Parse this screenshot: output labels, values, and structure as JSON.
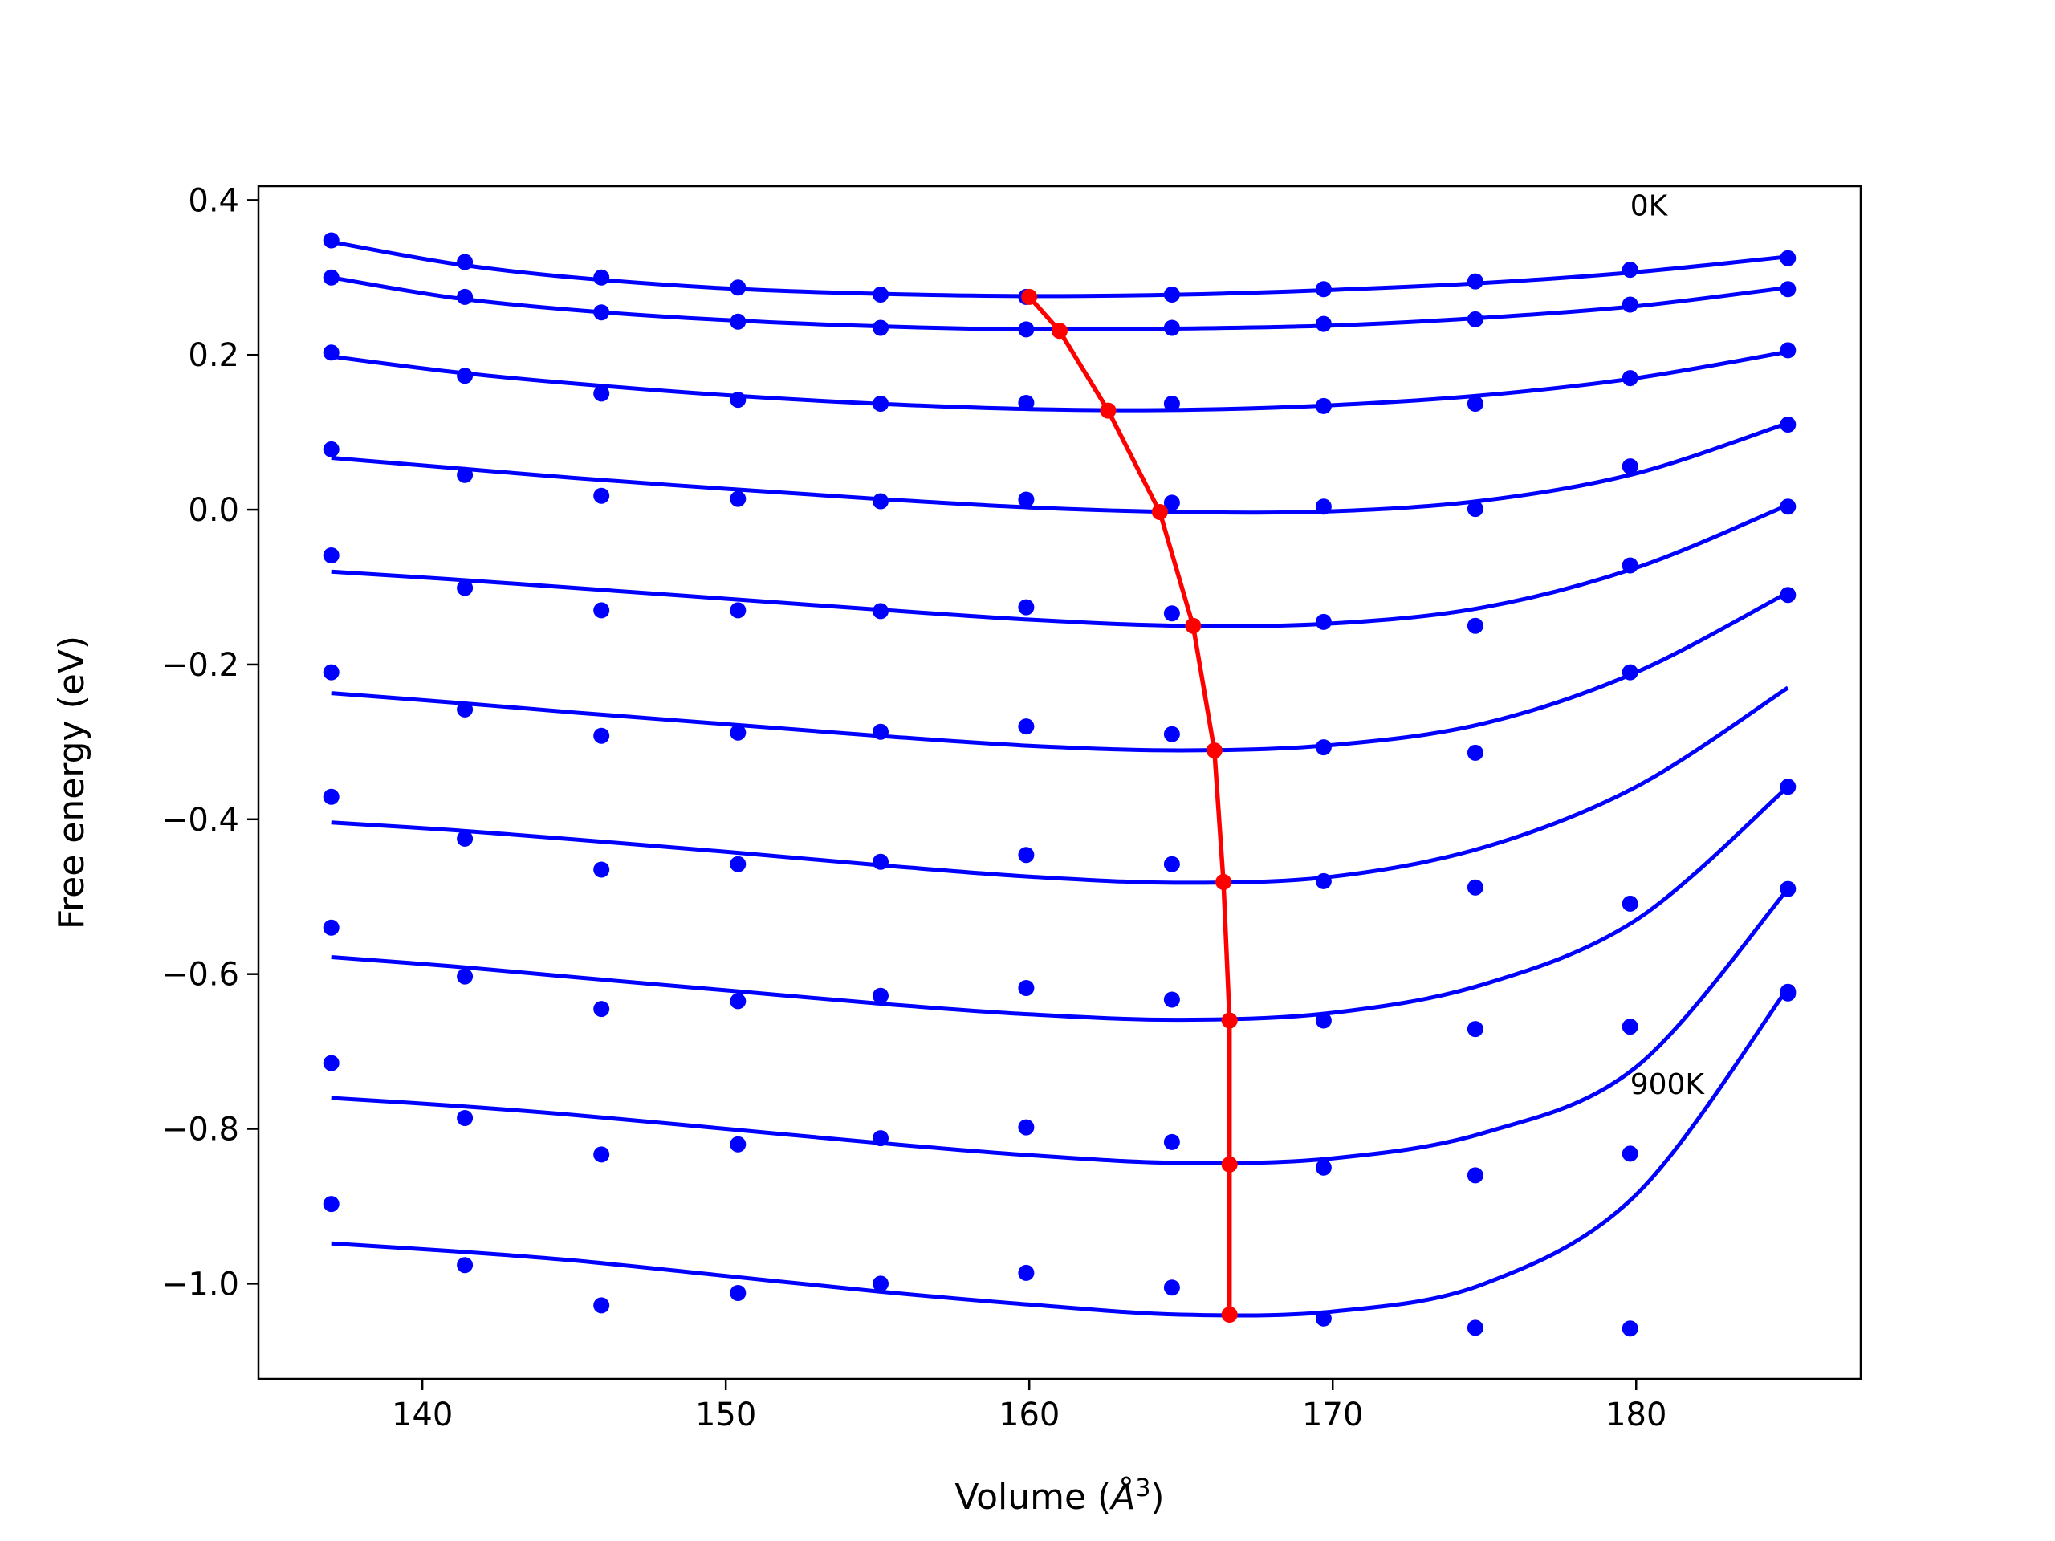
{
  "chart_data": {
    "type": "scatter",
    "title": "",
    "xlabel": "Volume (",
    "xlabel_unit": "Å",
    "xlabel_exponent": "3",
    "xlabel_close": ")",
    "ylabel": "Free energy (eV)",
    "xlim": [
      134.6,
      187.4
    ],
    "ylim": [
      -1.123,
      0.418
    ],
    "x_ticks": [
      140,
      150,
      160,
      170,
      180
    ],
    "x_tick_labels": [
      "140",
      "150",
      "160",
      "170",
      "180"
    ],
    "y_ticks": [
      0.4,
      0.2,
      0.0,
      -0.2,
      -0.4,
      -0.6,
      -0.8,
      -1.0
    ],
    "y_tick_labels": [
      "0.4",
      "0.2",
      "0.0",
      "−0.2",
      "−0.4",
      "−0.6",
      "−0.8",
      "−1.0"
    ],
    "grid": false,
    "colors": {
      "points": "#0000ff",
      "fits": "#0000ff",
      "minimum_path": "#ff0000"
    },
    "annotations": [
      {
        "text": "0K",
        "x": 179.8,
        "y": 0.38
      },
      {
        "text": "900K",
        "x": 179.8,
        "y": -0.755
      }
    ],
    "x": [
      137.0,
      141.4,
      145.9,
      150.4,
      155.1,
      159.9,
      164.7,
      169.7,
      174.7,
      179.8,
      185.0
    ],
    "series": [
      {
        "points": [
          0.348,
          0.32,
          0.3,
          0.287,
          0.278,
          0.275,
          0.278,
          0.285,
          0.295,
          0.31,
          0.325
        ],
        "fit": [
          [
            137.0,
            0.346
          ],
          [
            141.0,
            0.318
          ],
          [
            145.0,
            0.3
          ],
          [
            150.0,
            0.286
          ],
          [
            155.0,
            0.279
          ],
          [
            160.0,
            0.276
          ],
          [
            165.0,
            0.278
          ],
          [
            170.0,
            0.284
          ],
          [
            175.0,
            0.293
          ],
          [
            180.0,
            0.307
          ],
          [
            185.0,
            0.327
          ]
        ]
      },
      {
        "points": [
          0.3,
          0.275,
          0.255,
          0.243,
          0.235,
          0.233,
          0.235,
          0.24,
          0.246,
          0.265,
          0.285
        ],
        "fit": [
          [
            137.0,
            0.3
          ],
          [
            141.0,
            0.274
          ],
          [
            145.0,
            0.258
          ],
          [
            150.0,
            0.245
          ],
          [
            155.0,
            0.237
          ],
          [
            160.0,
            0.233
          ],
          [
            165.0,
            0.234
          ],
          [
            170.0,
            0.238
          ],
          [
            175.0,
            0.248
          ],
          [
            180.0,
            0.263
          ],
          [
            185.0,
            0.287
          ]
        ]
      },
      {
        "points": [
          0.203,
          0.173,
          0.15,
          0.142,
          0.137,
          0.138,
          0.137,
          0.134,
          0.137,
          0.17,
          0.206
        ],
        "fit": [
          [
            137.0,
            0.198
          ],
          [
            141.0,
            0.178
          ],
          [
            145.0,
            0.163
          ],
          [
            150.0,
            0.148
          ],
          [
            155.0,
            0.137
          ],
          [
            160.0,
            0.13
          ],
          [
            165.0,
            0.129
          ],
          [
            170.0,
            0.135
          ],
          [
            175.0,
            0.148
          ],
          [
            180.0,
            0.17
          ],
          [
            185.0,
            0.204
          ]
        ]
      },
      {
        "points": [
          0.078,
          0.045,
          0.018,
          0.014,
          0.011,
          0.013,
          0.009,
          0.004,
          0.001,
          0.056,
          0.11
        ],
        "fit": [
          [
            137.0,
            0.067
          ],
          [
            141.0,
            0.054
          ],
          [
            145.0,
            0.041
          ],
          [
            150.0,
            0.027
          ],
          [
            155.0,
            0.014
          ],
          [
            160.0,
            0.003
          ],
          [
            165.0,
            -0.003
          ],
          [
            170.0,
            -0.002
          ],
          [
            175.0,
            0.012
          ],
          [
            180.0,
            0.047
          ],
          [
            185.0,
            0.112
          ]
        ]
      },
      {
        "points": [
          -0.059,
          -0.101,
          -0.13,
          -0.13,
          -0.131,
          -0.126,
          -0.134,
          -0.145,
          -0.15,
          -0.072,
          0.004
        ],
        "fit": [
          [
            137.0,
            -0.08
          ],
          [
            141.0,
            -0.09
          ],
          [
            145.0,
            -0.101
          ],
          [
            150.0,
            -0.115
          ],
          [
            155.0,
            -0.129
          ],
          [
            160.0,
            -0.142
          ],
          [
            165.0,
            -0.15
          ],
          [
            170.0,
            -0.147
          ],
          [
            175.0,
            -0.126
          ],
          [
            180.0,
            -0.075
          ],
          [
            185.0,
            0.006
          ]
        ]
      },
      {
        "points": [
          -0.21,
          -0.258,
          -0.292,
          -0.288,
          -0.287,
          -0.28,
          -0.29,
          -0.307,
          -0.314,
          -0.21,
          -0.11
        ],
        "fit": [
          [
            137.0,
            -0.237
          ],
          [
            141.0,
            -0.249
          ],
          [
            145.0,
            -0.262
          ],
          [
            150.0,
            -0.277
          ],
          [
            155.0,
            -0.292
          ],
          [
            160.0,
            -0.305
          ],
          [
            165.0,
            -0.311
          ],
          [
            170.0,
            -0.304
          ],
          [
            175.0,
            -0.276
          ],
          [
            180.0,
            -0.21
          ],
          [
            185.0,
            -0.107
          ]
        ]
      },
      {
        "points": [
          -0.371,
          -0.425,
          -0.465,
          -0.458,
          -0.455,
          -0.446,
          -0.458,
          -0.48,
          -0.488,
          -0.509,
          -0.358
        ],
        "fit": [
          [
            137.0,
            -0.404
          ],
          [
            141.0,
            -0.414
          ],
          [
            145.0,
            -0.426
          ],
          [
            150.0,
            -0.442
          ],
          [
            155.0,
            -0.459
          ],
          [
            160.0,
            -0.474
          ],
          [
            165.0,
            -0.482
          ],
          [
            170.0,
            -0.474
          ],
          [
            175.0,
            -0.436
          ],
          [
            180.0,
            -0.358
          ],
          [
            185.0,
            -0.23
          ]
        ]
      },
      {
        "points": [
          -0.54,
          -0.603,
          -0.645,
          -0.635,
          -0.628,
          -0.618,
          -0.633,
          -0.66,
          -0.671,
          -0.668,
          -0.49
        ],
        "fit": [
          [
            137.0,
            -0.578
          ],
          [
            141.0,
            -0.59
          ],
          [
            145.0,
            -0.604
          ],
          [
            150.0,
            -0.621
          ],
          [
            155.0,
            -0.638
          ],
          [
            160.0,
            -0.652
          ],
          [
            165.0,
            -0.659
          ],
          [
            170.0,
            -0.65
          ],
          [
            175.0,
            -0.613
          ],
          [
            180.0,
            -0.53
          ],
          [
            185.0,
            -0.358
          ]
        ]
      },
      {
        "points": [
          -0.715,
          -0.786,
          -0.833,
          -0.82,
          -0.812,
          -0.798,
          -0.817,
          -0.85,
          -0.86,
          -0.832,
          -0.625
        ],
        "fit": [
          [
            137.0,
            -0.76
          ],
          [
            141.0,
            -0.77
          ],
          [
            145.0,
            -0.782
          ],
          [
            150.0,
            -0.8
          ],
          [
            155.0,
            -0.818
          ],
          [
            160.0,
            -0.834
          ],
          [
            165.0,
            -0.844
          ],
          [
            170.0,
            -0.838
          ],
          [
            175.0,
            -0.805
          ],
          [
            180.0,
            -0.72
          ],
          [
            185.0,
            -0.49
          ]
        ]
      },
      {
        "points": [
          -0.897,
          -0.976,
          -1.028,
          -1.012,
          -1.0,
          -0.986,
          -1.005,
          -1.045,
          -1.057,
          -1.058,
          -0.623
        ],
        "fit": [
          [
            137.0,
            -0.948
          ],
          [
            141.0,
            -0.958
          ],
          [
            145.0,
            -0.97
          ],
          [
            150.0,
            -0.99
          ],
          [
            155.0,
            -1.01
          ],
          [
            160.0,
            -1.027
          ],
          [
            165.0,
            -1.04
          ],
          [
            170.0,
            -1.036
          ],
          [
            175.0,
            -1.0
          ],
          [
            180.0,
            -0.885
          ],
          [
            185.0,
            -0.618
          ]
        ]
      }
    ],
    "minimum_path": {
      "x": [
        160.0,
        161.0,
        162.6,
        164.3,
        165.4,
        166.1,
        166.4,
        166.6,
        166.6,
        166.6
      ],
      "y": [
        0.275,
        0.231,
        0.128,
        -0.003,
        -0.15,
        -0.311,
        -0.481,
        -0.66,
        -0.846,
        -1.04
      ]
    }
  }
}
